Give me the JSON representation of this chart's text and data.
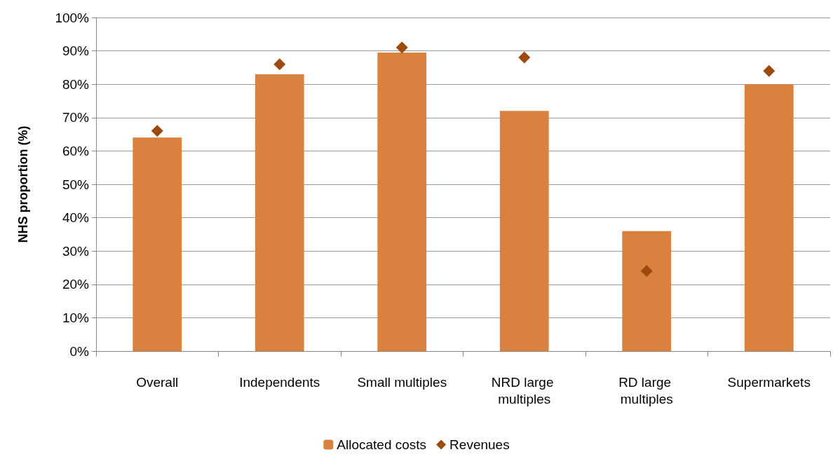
{
  "chart_data": {
    "type": "bar",
    "ylabel": "NHS proportion (%)",
    "categories": [
      "Overall",
      "Independents",
      "Small multiples",
      "NRD large multiples",
      "RD large multiples",
      "Supermarkets"
    ],
    "series": [
      {
        "name": "Allocated costs",
        "color": "#d9823f",
        "values": [
          64,
          83,
          89.5,
          72,
          36,
          80
        ]
      },
      {
        "name": "Revenues",
        "type": "scatter",
        "marker": "diamond",
        "color": "#9c4a10",
        "values": [
          66,
          86,
          91,
          88,
          24,
          84
        ]
      }
    ],
    "ylim": [
      0,
      100
    ],
    "yticks": [
      {
        "value": 0,
        "label": "0%"
      },
      {
        "value": 10,
        "label": "10%"
      },
      {
        "value": 20,
        "label": "20%"
      },
      {
        "value": 30,
        "label": "30%"
      },
      {
        "value": 40,
        "label": "40%"
      },
      {
        "value": 50,
        "label": "50%"
      },
      {
        "value": 60,
        "label": "60%"
      },
      {
        "value": 70,
        "label": "70%"
      },
      {
        "value": 80,
        "label": "80%"
      },
      {
        "value": 90,
        "label": "90%"
      },
      {
        "value": 100,
        "label": "100%"
      }
    ],
    "grid": "y",
    "legend": "bottom"
  }
}
